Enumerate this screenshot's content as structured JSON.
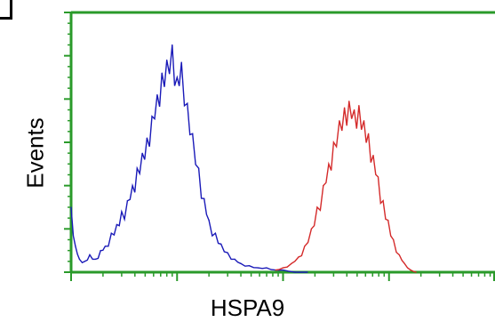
{
  "chart_data": {
    "type": "line",
    "title": "",
    "xlabel": "HSPA9",
    "ylabel": "Events",
    "x_scale": "log",
    "xlim": [
      1,
      10000
    ],
    "ylim": [
      0,
      120
    ],
    "grid": false,
    "legend": "none",
    "colors": {
      "axis": "#2a9a2a",
      "series_blue": "#1a1ab8",
      "series_red": "#d42a2a"
    },
    "series": [
      {
        "color": "#1a1ab8",
        "x": [
          1.0,
          1.1,
          1.2,
          1.35,
          1.5,
          1.7,
          1.9,
          2.1,
          2.4,
          2.7,
          3.0,
          3.4,
          3.8,
          4.2,
          4.7,
          5.2,
          5.8,
          6.5,
          7.2,
          8.0,
          9.0,
          10,
          11,
          12.5,
          14,
          16,
          18,
          20,
          23,
          26,
          30,
          35,
          40,
          48,
          58,
          70,
          85,
          100,
          130,
          170
        ],
        "y": [
          30,
          12,
          6,
          5,
          8,
          6,
          10,
          12,
          18,
          22,
          28,
          33,
          40,
          48,
          55,
          62,
          72,
          82,
          92,
          98,
          105,
          90,
          97,
          78,
          64,
          48,
          34,
          24,
          18,
          13,
          9,
          6,
          4,
          3,
          2,
          2,
          1,
          1,
          0,
          0
        ]
      },
      {
        "color": "#d42a2a",
        "x": [
          85,
          100,
          120,
          140,
          160,
          185,
          210,
          240,
          270,
          300,
          340,
          380,
          420,
          470,
          520,
          580,
          640,
          710,
          790,
          880,
          980,
          1100,
          1250,
          1400,
          1600,
          1800
        ],
        "y": [
          1,
          2,
          4,
          7,
          12,
          20,
          30,
          40,
          50,
          60,
          70,
          76,
          79,
          75,
          77,
          70,
          64,
          54,
          44,
          33,
          24,
          15,
          8,
          4,
          1,
          0
        ]
      }
    ]
  }
}
